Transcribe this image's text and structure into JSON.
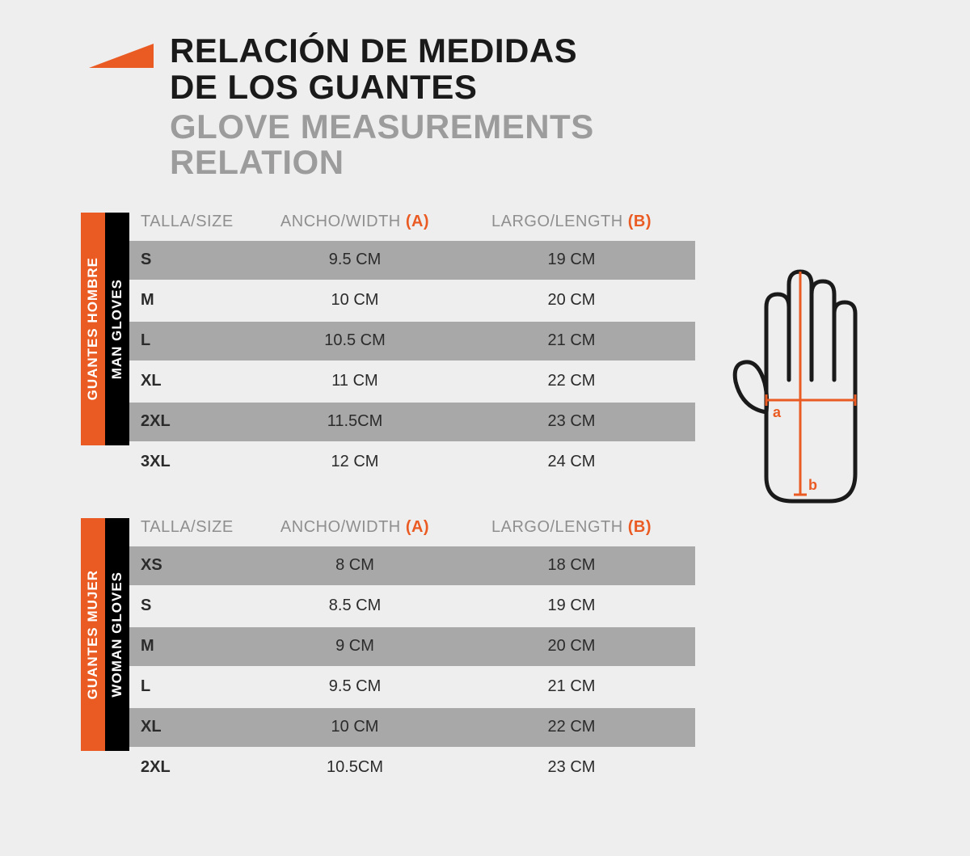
{
  "colors": {
    "accent": "#ea5b23",
    "bg": "#efeeee",
    "row_dark": "#a8a8a8",
    "row_light": "#efeeee",
    "header_gray": "#8f8f8f",
    "subtitle_gray": "#9c9c9c",
    "black": "#000000",
    "white": "#ffffff",
    "text": "#2b2b2b"
  },
  "title_es_line1": "RELACIÓN DE MEDIDAS",
  "title_es_line2": "DE LOS GUANTES",
  "title_en": "GLOVE MEASUREMENTS RELATION",
  "columns": {
    "size": "TALLA/SIZE",
    "width": "ANCHO/WIDTH ",
    "width_suffix": "(A)",
    "length": "LARGO/LENGTH ",
    "length_suffix": "(B)"
  },
  "tables": [
    {
      "vtab_es": "GUANTES HOMBRE",
      "vtab_en": "MAN GLOVES",
      "rows": [
        {
          "size": "S",
          "width": "9.5 CM",
          "length": "19 CM"
        },
        {
          "size": "M",
          "width": "10 CM",
          "length": "20 CM"
        },
        {
          "size": "L",
          "width": "10.5 CM",
          "length": "21 CM"
        },
        {
          "size": "XL",
          "width": "11 CM",
          "length": "22 CM"
        },
        {
          "size": "2XL",
          "width": "11.5CM",
          "length": "23 CM"
        },
        {
          "size": "3XL",
          "width": "12 CM",
          "length": "24 CM"
        }
      ]
    },
    {
      "vtab_es": "GUANTES MUJER",
      "vtab_en": "WOMAN GLOVES",
      "rows": [
        {
          "size": "XS",
          "width": "8 CM",
          "length": "18 CM"
        },
        {
          "size": "S",
          "width": "8.5 CM",
          "length": "19 CM"
        },
        {
          "size": "M",
          "width": "9 CM",
          "length": "20 CM"
        },
        {
          "size": "L",
          "width": "9.5 CM",
          "length": "21 CM"
        },
        {
          "size": "XL",
          "width": "10 CM",
          "length": "22 CM"
        },
        {
          "size": "2XL",
          "width": "10.5CM",
          "length": "23 CM"
        }
      ]
    }
  ],
  "diagram": {
    "label_a": "a",
    "label_b": "b",
    "stroke": "#1a1a1a",
    "measure": "#ea5b23"
  }
}
